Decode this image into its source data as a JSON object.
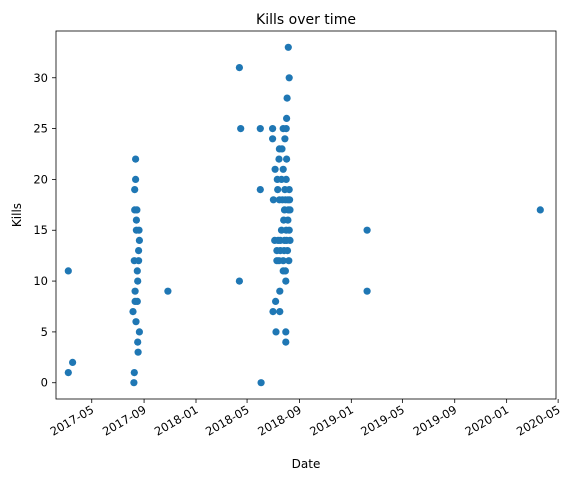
{
  "chart_data": {
    "type": "scatter",
    "title": "Kills over time",
    "xlabel": "Date",
    "ylabel": "Kills",
    "xlim": [
      "2017-02-06",
      "2020-04-26"
    ],
    "ylim": [
      -1.6,
      34.6
    ],
    "x_ticks": [
      "2017-05",
      "2017-09",
      "2018-01",
      "2018-05",
      "2018-09",
      "2019-01",
      "2019-05",
      "2019-09",
      "2020-01",
      "2020-05"
    ],
    "y_ticks": [
      0,
      5,
      10,
      15,
      20,
      25,
      30
    ],
    "grid": false,
    "legend": false,
    "marker_color": "#1f77b4",
    "points": [
      {
        "x": "2017-03-07",
        "y": 11
      },
      {
        "x": "2017-03-07",
        "y": 1
      },
      {
        "x": "2017-03-17",
        "y": 2
      },
      {
        "x": "2017-08-06",
        "y": 7
      },
      {
        "x": "2017-08-08",
        "y": 0
      },
      {
        "x": "2017-08-09",
        "y": 1
      },
      {
        "x": "2017-08-09",
        "y": 12
      },
      {
        "x": "2017-08-10",
        "y": 17
      },
      {
        "x": "2017-08-10",
        "y": 19
      },
      {
        "x": "2017-08-11",
        "y": 9
      },
      {
        "x": "2017-08-11",
        "y": 8
      },
      {
        "x": "2017-08-12",
        "y": 22
      },
      {
        "x": "2017-08-12",
        "y": 20
      },
      {
        "x": "2017-08-13",
        "y": 6
      },
      {
        "x": "2017-08-14",
        "y": 16
      },
      {
        "x": "2017-08-14",
        "y": 15
      },
      {
        "x": "2017-08-15",
        "y": 17
      },
      {
        "x": "2017-08-16",
        "y": 11
      },
      {
        "x": "2017-08-16",
        "y": 8
      },
      {
        "x": "2017-08-17",
        "y": 10
      },
      {
        "x": "2017-08-17",
        "y": 4
      },
      {
        "x": "2017-08-18",
        "y": 3
      },
      {
        "x": "2017-08-19",
        "y": 12
      },
      {
        "x": "2017-08-19",
        "y": 13
      },
      {
        "x": "2017-08-20",
        "y": 15
      },
      {
        "x": "2017-08-21",
        "y": 14
      },
      {
        "x": "2017-08-21",
        "y": 5
      },
      {
        "x": "2017-10-27",
        "y": 9
      },
      {
        "x": "2018-04-13",
        "y": 31
      },
      {
        "x": "2018-04-13",
        "y": 10
      },
      {
        "x": "2018-04-16",
        "y": 25
      },
      {
        "x": "2018-06-01",
        "y": 25
      },
      {
        "x": "2018-06-01",
        "y": 19
      },
      {
        "x": "2018-06-03",
        "y": 0
      },
      {
        "x": "2018-06-30",
        "y": 25
      },
      {
        "x": "2018-06-30",
        "y": 24
      },
      {
        "x": "2018-07-01",
        "y": 7
      },
      {
        "x": "2018-07-02",
        "y": 18
      },
      {
        "x": "2018-07-05",
        "y": 14
      },
      {
        "x": "2018-07-06",
        "y": 21
      },
      {
        "x": "2018-07-07",
        "y": 8
      },
      {
        "x": "2018-07-08",
        "y": 5
      },
      {
        "x": "2018-07-10",
        "y": 13
      },
      {
        "x": "2018-07-10",
        "y": 12
      },
      {
        "x": "2018-07-11",
        "y": 20
      },
      {
        "x": "2018-07-12",
        "y": 19
      },
      {
        "x": "2018-07-13",
        "y": 14
      },
      {
        "x": "2018-07-15",
        "y": 22
      },
      {
        "x": "2018-07-15",
        "y": 12
      },
      {
        "x": "2018-07-16",
        "y": 23
      },
      {
        "x": "2018-07-16",
        "y": 18
      },
      {
        "x": "2018-07-17",
        "y": 9
      },
      {
        "x": "2018-07-17",
        "y": 7
      },
      {
        "x": "2018-07-18",
        "y": 14
      },
      {
        "x": "2018-07-18",
        "y": 13
      },
      {
        "x": "2018-07-21",
        "y": 20
      },
      {
        "x": "2018-07-21",
        "y": 15
      },
      {
        "x": "2018-07-22",
        "y": 23
      },
      {
        "x": "2018-07-23",
        "y": 18
      },
      {
        "x": "2018-07-25",
        "y": 25
      },
      {
        "x": "2018-07-25",
        "y": 21
      },
      {
        "x": "2018-07-25",
        "y": 12
      },
      {
        "x": "2018-07-25",
        "y": 11
      },
      {
        "x": "2018-07-26",
        "y": 16
      },
      {
        "x": "2018-07-27",
        "y": 13
      },
      {
        "x": "2018-07-28",
        "y": 17
      },
      {
        "x": "2018-07-28",
        "y": 14
      },
      {
        "x": "2018-07-29",
        "y": 24
      },
      {
        "x": "2018-07-29",
        "y": 19
      },
      {
        "x": "2018-07-30",
        "y": 18
      },
      {
        "x": "2018-07-30",
        "y": 11
      },
      {
        "x": "2018-07-31",
        "y": 10
      },
      {
        "x": "2018-07-31",
        "y": 5
      },
      {
        "x": "2018-07-31",
        "y": 4
      },
      {
        "x": "2018-08-01",
        "y": 25
      },
      {
        "x": "2018-08-01",
        "y": 20
      },
      {
        "x": "2018-08-01",
        "y": 15
      },
      {
        "x": "2018-08-02",
        "y": 26
      },
      {
        "x": "2018-08-02",
        "y": 22
      },
      {
        "x": "2018-08-02",
        "y": 14
      },
      {
        "x": "2018-08-03",
        "y": 28
      },
      {
        "x": "2018-08-04",
        "y": 13
      },
      {
        "x": "2018-08-05",
        "y": 18
      },
      {
        "x": "2018-08-05",
        "y": 16
      },
      {
        "x": "2018-08-06",
        "y": 33
      },
      {
        "x": "2018-08-06",
        "y": 17
      },
      {
        "x": "2018-08-07",
        "y": 12
      },
      {
        "x": "2018-08-08",
        "y": 30
      },
      {
        "x": "2018-08-08",
        "y": 19
      },
      {
        "x": "2018-08-08",
        "y": 15
      },
      {
        "x": "2018-08-09",
        "y": 18
      },
      {
        "x": "2018-08-10",
        "y": 17
      },
      {
        "x": "2018-08-10",
        "y": 14
      },
      {
        "x": "2019-02-07",
        "y": 15
      },
      {
        "x": "2019-02-07",
        "y": 9
      },
      {
        "x": "2020-03-20",
        "y": 17
      }
    ]
  }
}
